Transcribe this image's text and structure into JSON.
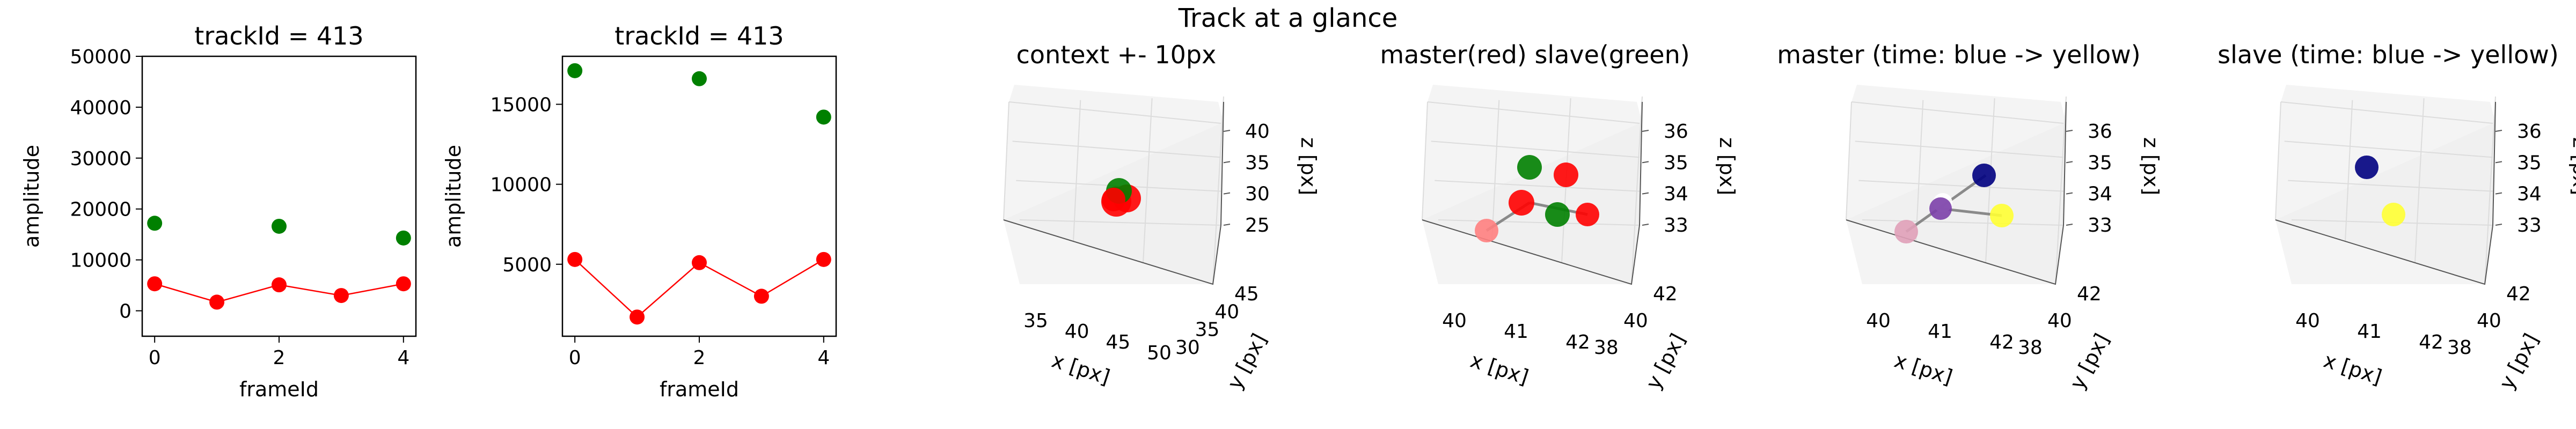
{
  "figure": {
    "suptitle": "Track at a glance"
  },
  "chart_data": [
    {
      "type": "scatter",
      "title": "trackId = 413",
      "xlabel": "frameId",
      "ylabel": "amplitude",
      "xlim": [
        -0.2,
        4.2
      ],
      "ylim": [
        -5000,
        50000
      ],
      "xticks": [
        "0",
        "2",
        "4"
      ],
      "yticks": [
        "0",
        "10000",
        "20000",
        "30000",
        "40000",
        "50000"
      ],
      "series": [
        {
          "color": "#008000",
          "line": false,
          "x": [
            0,
            2,
            4
          ],
          "y": [
            17200,
            16600,
            14300
          ]
        },
        {
          "color": "#ff0000",
          "line": true,
          "x": [
            0,
            1,
            2,
            3,
            4
          ],
          "y": [
            5300,
            1700,
            5100,
            3000,
            5300
          ]
        }
      ]
    },
    {
      "type": "scatter",
      "title": "trackId = 413",
      "xlabel": "frameId",
      "ylabel": "amplitude",
      "xlim": [
        -0.2,
        4.2
      ],
      "ylim": [
        500,
        18000
      ],
      "xticks": [
        "0",
        "2",
        "4"
      ],
      "yticks": [
        "5000",
        "10000",
        "15000"
      ],
      "series": [
        {
          "color": "#008000",
          "line": false,
          "x": [
            0,
            2,
            4
          ],
          "y": [
            17100,
            16600,
            14200
          ]
        },
        {
          "color": "#ff0000",
          "line": true,
          "x": [
            0,
            1,
            2,
            3,
            4
          ],
          "y": [
            5300,
            1700,
            5100,
            3000,
            5300
          ]
        }
      ]
    },
    {
      "type": "scatter3d",
      "title": "context +- 10px",
      "xlabel": "x [px]",
      "ylabel": "y [px]",
      "zlabel": "z [px]",
      "xticks": [
        "35",
        "40",
        "45",
        "50"
      ],
      "yticks": [
        "30",
        "35",
        "40",
        "45"
      ],
      "zticks": [
        "25",
        "30",
        "35",
        "40"
      ],
      "points": [
        {
          "color": "#ff0000"
        },
        {
          "color": "#ff0000"
        },
        {
          "color": "#008000"
        },
        {
          "color": "#ff0000"
        }
      ]
    },
    {
      "type": "scatter3d",
      "title": "master(red) slave(green)",
      "xlabel": "x [px]",
      "ylabel": "y [px]",
      "zlabel": "z [px]",
      "xticks": [
        "40",
        "41",
        "42"
      ],
      "yticks": [
        "38",
        "40",
        "42"
      ],
      "zticks": [
        "33",
        "34",
        "35",
        "36"
      ],
      "points": [
        {
          "color": "#008000"
        },
        {
          "color": "#ff0000"
        },
        {
          "color": "#ff0000"
        },
        {
          "color": "#008000"
        },
        {
          "color": "#ff0000"
        },
        {
          "color": "#ff8080"
        }
      ]
    },
    {
      "type": "scatter3d",
      "title": "master (time: blue -> yellow)",
      "xlabel": "x [px]",
      "ylabel": "y [px]",
      "zlabel": "z [px]",
      "xticks": [
        "40",
        "41",
        "42"
      ],
      "yticks": [
        "38",
        "40",
        "42"
      ],
      "zticks": [
        "33",
        "34",
        "35",
        "36"
      ],
      "points": [
        {
          "color": "#000080"
        },
        {
          "color": "#ffffff"
        },
        {
          "color": "#7b3fa8"
        },
        {
          "color": "#ffff33"
        },
        {
          "color": "#e0a0b8"
        }
      ]
    },
    {
      "type": "scatter3d",
      "title": "slave (time: blue -> yellow)",
      "xlabel": "x [px]",
      "ylabel": "y [px]",
      "zlabel": "z [px]",
      "xticks": [
        "40",
        "41",
        "42"
      ],
      "yticks": [
        "38",
        "40",
        "42"
      ],
      "zticks": [
        "33",
        "34",
        "35",
        "36"
      ],
      "points": [
        {
          "color": "#000080"
        },
        {
          "color": "#ffff33"
        }
      ]
    }
  ]
}
